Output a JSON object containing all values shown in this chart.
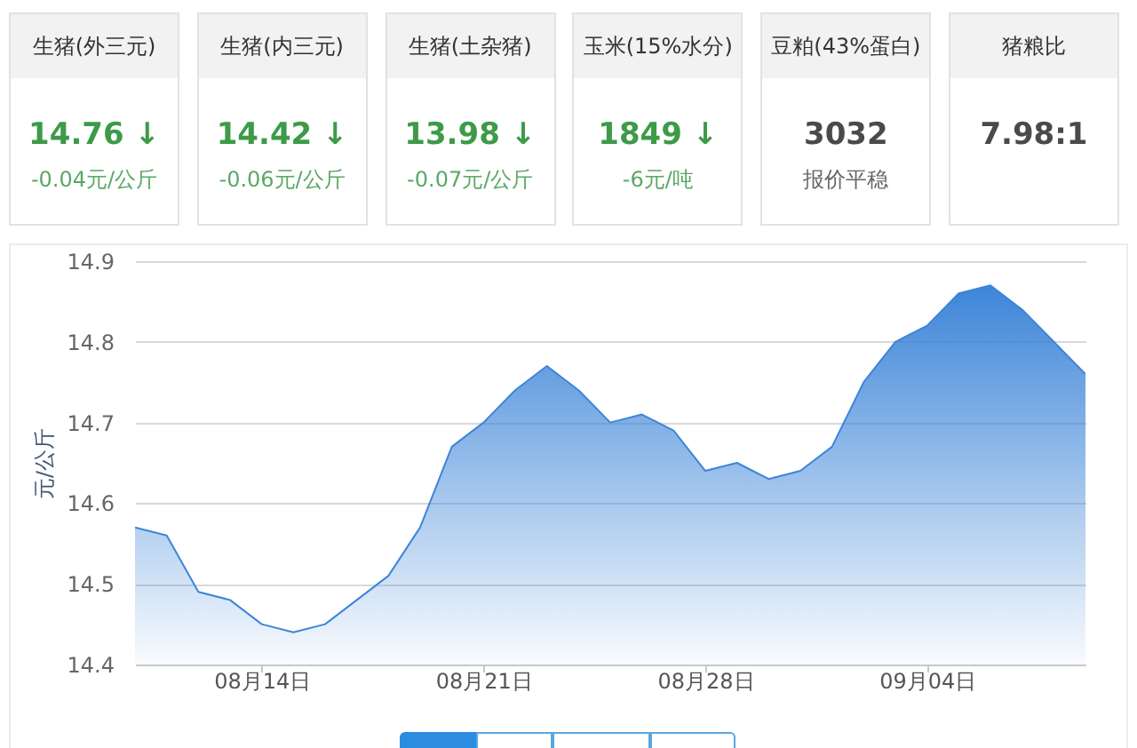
{
  "chart_data": [
    {
      "type": "other",
      "title": "生猪(外三元)",
      "annotations": [
        "14.76 ↓",
        "-0.04元/公斤"
      ],
      "colors": [
        "#3d9b48",
        "#5aa863"
      ]
    },
    {
      "type": "other",
      "title": "生猪(内三元)",
      "annotations": [
        "14.42 ↓",
        "-0.06元/公斤"
      ],
      "colors": [
        "#3d9b48",
        "#5aa863"
      ]
    },
    {
      "type": "other",
      "title": "生猪(土杂猪)",
      "annotations": [
        "13.98 ↓",
        "-0.07元/公斤"
      ],
      "colors": [
        "#3d9b48",
        "#5aa863"
      ]
    },
    {
      "type": "other",
      "title": "玉米(15%水分)",
      "annotations": [
        "1849 ↓",
        "-6元/吨"
      ],
      "colors": [
        "#3d9b48",
        "#5aa863"
      ]
    },
    {
      "type": "other",
      "title": "豆粕(43%蛋白)",
      "annotations": [
        "3032",
        "报价平稳"
      ],
      "colors": [
        "#4a4a4a",
        "#666666"
      ]
    },
    {
      "type": "other",
      "title": "猪粮比",
      "annotations": [
        "7.98:1"
      ],
      "colors": [
        "#4a4a4a"
      ]
    },
    {
      "type": "area",
      "ylabel": "元/公斤",
      "x": [
        "--08-10",
        "--08-11",
        "--08-12",
        "--08-13",
        "--08-14",
        "--08-15",
        "--08-16",
        "--08-17",
        "--08-18",
        "--08-19",
        "--08-20",
        "--08-21",
        "--08-22",
        "--08-23",
        "--08-24",
        "--08-25",
        "--08-26",
        "--08-27",
        "--08-28",
        "--08-29",
        "--08-30",
        "--08-31",
        "--09-01",
        "--09-02",
        "--09-03",
        "--09-04",
        "--09-05",
        "--09-06",
        "--09-07",
        "--09-08",
        "--09-09"
      ],
      "values": [
        14.57,
        14.56,
        14.49,
        14.48,
        14.45,
        14.44,
        14.45,
        14.48,
        14.51,
        14.57,
        14.67,
        14.7,
        14.74,
        14.77,
        14.74,
        14.7,
        14.71,
        14.69,
        14.64,
        14.65,
        14.63,
        14.64,
        14.67,
        14.75,
        14.8,
        14.82,
        14.86,
        14.87,
        14.84,
        14.8,
        14.76
      ],
      "color": "#3d85d8",
      "xlim": [
        "--08-10",
        "--09-09"
      ],
      "xticks": [
        {
          "value": "--08-14",
          "label": "08月14日"
        },
        {
          "value": "--08-21",
          "label": "08月21日"
        },
        {
          "value": "--08-28",
          "label": "08月28日"
        },
        {
          "value": "--09-04",
          "label": "09月04日"
        }
      ],
      "ylim": [
        14.4,
        14.9
      ],
      "yticks": [
        14.4,
        14.5,
        14.6,
        14.7,
        14.8,
        14.9
      ],
      "grid": "y"
    }
  ]
}
